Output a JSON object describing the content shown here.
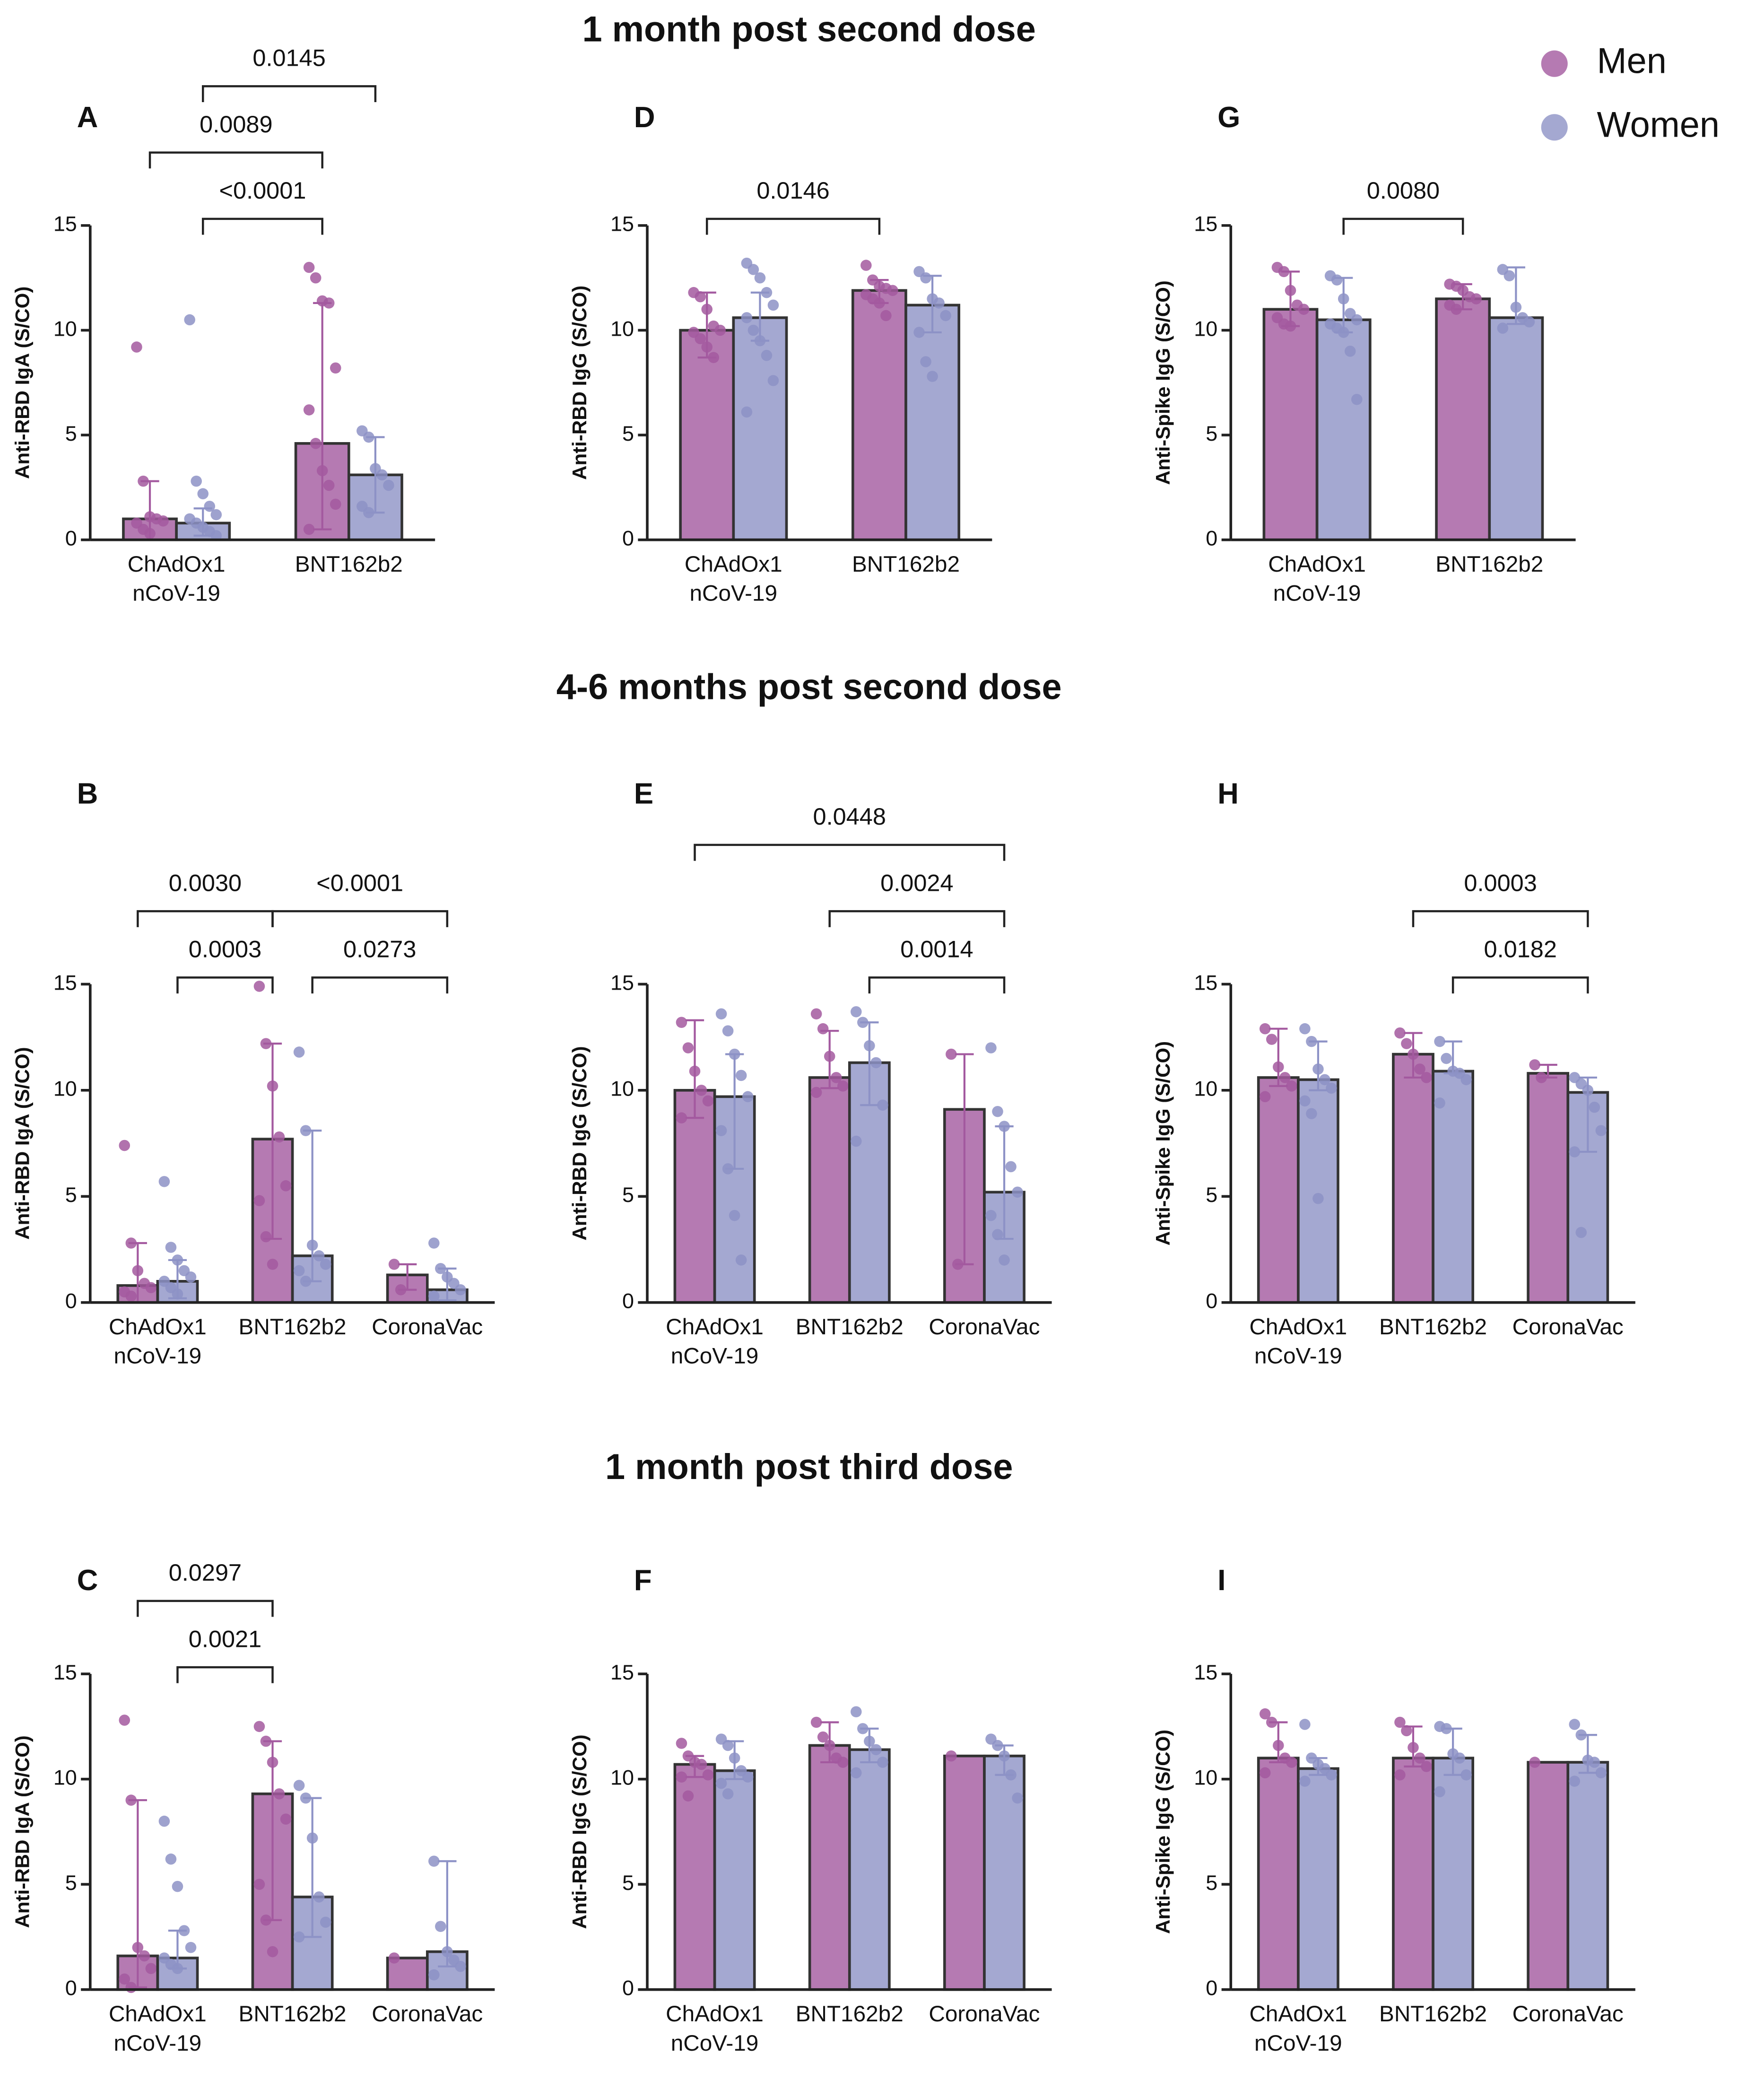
{
  "sections": [
    "1 month post second dose",
    "4-6 months post second dose",
    "1 month post third dose"
  ],
  "chart_data": [
    {
      "type": "bar",
      "panel": "A",
      "ylabel": "Anti-RBD IgA (S/CO)",
      "categories": [
        "ChAdOx1\nnCoV-19",
        "BNT162b2"
      ],
      "ylim": [
        0,
        15
      ],
      "yticks": [
        0,
        5,
        10,
        15
      ],
      "series": [
        {
          "name": "Men",
          "color": "#a3599f",
          "values": [
            1.0,
            4.6
          ],
          "low": [
            0,
            0.5
          ],
          "high": [
            2.8,
            11.3
          ],
          "points": [
            [
              9.2,
              2.8,
              1.1,
              1.0,
              0.9,
              0.8,
              0.5,
              0.3
            ],
            [
              13.0,
              12.5,
              11.4,
              11.3,
              8.2,
              6.2,
              4.6,
              3.3,
              2.6,
              1.7,
              0.5
            ]
          ]
        },
        {
          "name": "Women",
          "color": "#8d92c6",
          "values": [
            0.8,
            3.1
          ],
          "low": [
            0.2,
            1.3
          ],
          "high": [
            1.5,
            4.9
          ],
          "points": [
            [
              10.5,
              2.8,
              2.2,
              1.6,
              1.2,
              1.0,
              0.8,
              0.6,
              0.4,
              0.2
            ],
            [
              5.2,
              4.9,
              3.4,
              3.1,
              2.6,
              1.6,
              1.3
            ]
          ]
        }
      ],
      "annotations": [
        {
          "text": "<0.0001",
          "from": [
            0,
            1
          ],
          "to": [
            1,
            0
          ]
        },
        {
          "text": "0.0089",
          "from": [
            0,
            0
          ],
          "to": [
            1,
            0
          ]
        },
        {
          "text": "0.0145",
          "from": [
            0,
            1
          ],
          "to": [
            1,
            1
          ]
        }
      ]
    },
    {
      "type": "bar",
      "panel": "D",
      "ylabel": "Anti-RBD IgG (S/CO)",
      "categories": [
        "ChAdOx1\nnCoV-19",
        "BNT162b2"
      ],
      "ylim": [
        0,
        15
      ],
      "yticks": [
        0,
        5,
        10,
        15
      ],
      "series": [
        {
          "name": "Men",
          "color": "#a3599f",
          "values": [
            10.0,
            11.9
          ],
          "low": [
            8.7,
            11.3
          ],
          "high": [
            11.8,
            12.4
          ],
          "points": [
            [
              11.8,
              11.6,
              11.0,
              10.2,
              10.0,
              9.9,
              9.6,
              9.2,
              8.7
            ],
            [
              13.1,
              12.4,
              12.1,
              12.0,
              11.9,
              11.7,
              11.5,
              11.3,
              10.7
            ]
          ]
        },
        {
          "name": "Women",
          "color": "#8d92c6",
          "values": [
            10.6,
            11.2
          ],
          "low": [
            9.5,
            9.9
          ],
          "high": [
            11.8,
            12.6
          ],
          "points": [
            [
              13.2,
              12.9,
              12.5,
              11.8,
              11.2,
              10.6,
              10.0,
              9.5,
              8.8,
              7.6,
              6.1
            ],
            [
              12.8,
              12.5,
              11.5,
              11.3,
              10.7,
              9.9,
              8.5,
              7.8
            ]
          ]
        }
      ],
      "annotations": [
        {
          "text": "0.0146",
          "from": [
            0,
            0
          ],
          "to": [
            1,
            0
          ]
        }
      ]
    },
    {
      "type": "bar",
      "panel": "G",
      "ylabel": "Anti-Spike IgG (S/CO)",
      "categories": [
        "ChAdOx1\nnCoV-19",
        "BNT162b2"
      ],
      "ylim": [
        0,
        15
      ],
      "yticks": [
        0,
        5,
        10,
        15
      ],
      "series": [
        {
          "name": "Men",
          "color": "#a3599f",
          "values": [
            11.0,
            11.5
          ],
          "low": [
            10.2,
            11.0
          ],
          "high": [
            12.8,
            12.2
          ],
          "points": [
            [
              13.0,
              12.8,
              11.9,
              11.2,
              11.0,
              10.6,
              10.3,
              10.2
            ],
            [
              12.2,
              12.1,
              11.9,
              11.6,
              11.5,
              11.2,
              11.0
            ]
          ]
        },
        {
          "name": "Women",
          "color": "#8d92c6",
          "values": [
            10.5,
            10.6
          ],
          "low": [
            9.9,
            10.3
          ],
          "high": [
            12.5,
            13.0
          ],
          "points": [
            [
              12.6,
              12.4,
              11.5,
              10.8,
              10.5,
              10.3,
              10.1,
              9.9,
              9.0,
              6.7
            ],
            [
              12.9,
              12.6,
              11.1,
              10.6,
              10.4,
              10.1
            ]
          ]
        }
      ],
      "annotations": [
        {
          "text": "0.0080",
          "from": [
            0,
            1
          ],
          "to": [
            1,
            0
          ]
        }
      ]
    },
    {
      "type": "bar",
      "panel": "B",
      "ylabel": "Anti-RBD IgA (S/CO)",
      "categories": [
        "ChAdOx1\nnCoV-19",
        "BNT162b2",
        "CoronaVac"
      ],
      "ylim": [
        0,
        15
      ],
      "yticks": [
        0,
        5,
        10,
        15
      ],
      "series": [
        {
          "name": "Men",
          "color": "#a3599f",
          "values": [
            0.8,
            7.7,
            1.3
          ],
          "low": [
            0,
            3.0,
            0.6
          ],
          "high": [
            2.8,
            12.2,
            1.8
          ],
          "points": [
            [
              7.4,
              2.8,
              1.5,
              0.9,
              0.7,
              0.5,
              0.3
            ],
            [
              14.9,
              12.2,
              10.2,
              7.8,
              5.5,
              4.8,
              3.1,
              1.8
            ],
            [
              1.8,
              0.6
            ]
          ]
        },
        {
          "name": "Women",
          "color": "#8d92c6",
          "values": [
            1.0,
            2.2,
            0.6
          ],
          "low": [
            0.2,
            1.0,
            0.1
          ],
          "high": [
            2.0,
            8.1,
            1.6
          ],
          "points": [
            [
              5.7,
              2.6,
              2.0,
              1.5,
              1.2,
              1.0,
              0.7,
              0.4
            ],
            [
              11.8,
              8.1,
              2.7,
              2.2,
              1.8,
              1.5,
              1.0
            ],
            [
              2.8,
              1.6,
              1.2,
              0.9,
              0.6,
              0.3
            ]
          ]
        }
      ],
      "annotations": [
        {
          "text": "0.0003",
          "from": [
            0,
            1
          ],
          "to": [
            1,
            0
          ]
        },
        {
          "text": "0.0273",
          "from": [
            1,
            1
          ],
          "to": [
            2,
            1
          ]
        },
        {
          "text": "0.0030",
          "from": [
            0,
            0
          ],
          "to": [
            1,
            0
          ]
        },
        {
          "text": "<0.0001",
          "from": [
            1,
            0
          ],
          "to": [
            2,
            1
          ]
        }
      ]
    },
    {
      "type": "bar",
      "panel": "E",
      "ylabel": "Anti-RBD IgG (S/CO)",
      "categories": [
        "ChAdOx1\nnCoV-19",
        "BNT162b2",
        "CoronaVac"
      ],
      "ylim": [
        0,
        15
      ],
      "yticks": [
        0,
        5,
        10,
        15
      ],
      "series": [
        {
          "name": "Men",
          "color": "#a3599f",
          "values": [
            10.0,
            10.6,
            9.1
          ],
          "low": [
            8.7,
            10.1,
            1.8
          ],
          "high": [
            13.3,
            12.8,
            11.7
          ],
          "points": [
            [
              13.2,
              12.0,
              10.9,
              10.0,
              9.5,
              8.7
            ],
            [
              13.6,
              12.9,
              11.6,
              10.6,
              10.2,
              9.9
            ],
            [
              11.7,
              1.8
            ]
          ]
        },
        {
          "name": "Women",
          "color": "#8d92c6",
          "values": [
            9.7,
            11.3,
            5.2
          ],
          "low": [
            6.3,
            9.3,
            3.0
          ],
          "high": [
            11.7,
            13.2,
            8.3
          ],
          "points": [
            [
              13.6,
              12.8,
              11.7,
              10.7,
              9.7,
              8.1,
              6.3,
              4.1,
              2.0
            ],
            [
              13.7,
              13.2,
              12.1,
              11.3,
              9.3,
              7.6
            ],
            [
              12.0,
              9.0,
              8.3,
              6.4,
              5.2,
              4.1,
              3.2,
              2.0
            ]
          ]
        }
      ],
      "annotations": [
        {
          "text": "0.0014",
          "from": [
            1,
            1
          ],
          "to": [
            2,
            1
          ]
        },
        {
          "text": "0.0024",
          "from": [
            1,
            0
          ],
          "to": [
            2,
            1
          ]
        },
        {
          "text": "0.0448",
          "from": [
            0,
            0
          ],
          "to": [
            2,
            1
          ]
        }
      ]
    },
    {
      "type": "bar",
      "panel": "H",
      "ylabel": "Anti-Spike IgG (S/CO)",
      "categories": [
        "ChAdOx1\nnCoV-19",
        "BNT162b2",
        "CoronaVac"
      ],
      "ylim": [
        0,
        15
      ],
      "yticks": [
        0,
        5,
        10,
        15
      ],
      "series": [
        {
          "name": "Men",
          "color": "#a3599f",
          "values": [
            10.6,
            11.7,
            10.8
          ],
          "low": [
            10.2,
            10.6,
            10.6
          ],
          "high": [
            12.9,
            12.7,
            11.2
          ],
          "points": [
            [
              12.9,
              12.4,
              11.1,
              10.6,
              10.2,
              9.7
            ],
            [
              12.7,
              12.2,
              11.7,
              11.0,
              10.6
            ],
            [
              11.2,
              10.6
            ]
          ]
        },
        {
          "name": "Women",
          "color": "#8d92c6",
          "values": [
            10.5,
            10.9,
            9.9
          ],
          "low": [
            10.0,
            10.8,
            7.1
          ],
          "high": [
            12.3,
            12.3,
            10.6
          ],
          "points": [
            [
              12.9,
              12.3,
              11.0,
              10.5,
              10.1,
              9.5,
              8.9,
              4.9
            ],
            [
              12.3,
              11.5,
              10.9,
              10.8,
              10.5,
              9.4
            ],
            [
              10.6,
              10.3,
              10.0,
              9.2,
              8.1,
              7.1,
              3.3
            ]
          ]
        }
      ],
      "annotations": [
        {
          "text": "0.0182",
          "from": [
            1,
            1
          ],
          "to": [
            2,
            1
          ]
        },
        {
          "text": "0.0003",
          "from": [
            1,
            0
          ],
          "to": [
            2,
            1
          ]
        }
      ]
    },
    {
      "type": "bar",
      "panel": "C",
      "ylabel": "Anti-RBD IgA (S/CO)",
      "categories": [
        "ChAdOx1\nnCoV-19",
        "BNT162b2",
        "CoronaVac"
      ],
      "ylim": [
        0,
        15
      ],
      "yticks": [
        0,
        5,
        10,
        15
      ],
      "series": [
        {
          "name": "Men",
          "color": "#a3599f",
          "values": [
            1.6,
            9.3,
            1.5
          ],
          "low": [
            0.1,
            3.3,
            null
          ],
          "high": [
            9.0,
            11.8,
            null
          ],
          "points": [
            [
              12.8,
              9.0,
              2.0,
              1.6,
              1.0,
              0.5,
              0.1
            ],
            [
              12.5,
              11.8,
              10.8,
              9.3,
              8.1,
              5.0,
              3.3,
              1.8
            ],
            [
              1.5
            ]
          ]
        },
        {
          "name": "Women",
          "color": "#8d92c6",
          "values": [
            1.5,
            4.4,
            1.8
          ],
          "low": [
            1.0,
            2.5,
            1.1
          ],
          "high": [
            2.8,
            9.1,
            6.1
          ],
          "points": [
            [
              8.0,
              6.2,
              4.9,
              2.8,
              2.0,
              1.5,
              1.2,
              1.0
            ],
            [
              9.7,
              9.1,
              7.2,
              4.4,
              3.2,
              2.5
            ],
            [
              6.1,
              3.0,
              1.8,
              1.4,
              1.1,
              0.7
            ]
          ]
        }
      ],
      "annotations": [
        {
          "text": "0.0021",
          "from": [
            0,
            1
          ],
          "to": [
            1,
            0
          ]
        },
        {
          "text": "0.0297",
          "from": [
            0,
            0
          ],
          "to": [
            1,
            0
          ]
        }
      ]
    },
    {
      "type": "bar",
      "panel": "F",
      "ylabel": "Anti-RBD IgG (S/CO)",
      "categories": [
        "ChAdOx1\nnCoV-19",
        "BNT162b2",
        "CoronaVac"
      ],
      "ylim": [
        0,
        15
      ],
      "yticks": [
        0,
        5,
        10,
        15
      ],
      "series": [
        {
          "name": "Men",
          "color": "#a3599f",
          "values": [
            10.7,
            11.6,
            11.1
          ],
          "low": [
            10.1,
            10.8,
            null
          ],
          "high": [
            11.1,
            12.7,
            null
          ],
          "points": [
            [
              11.7,
              11.1,
              10.8,
              10.7,
              10.2,
              10.1,
              9.2
            ],
            [
              12.7,
              12.0,
              11.6,
              11.0,
              10.8
            ],
            [
              11.1
            ]
          ]
        },
        {
          "name": "Women",
          "color": "#8d92c6",
          "values": [
            10.4,
            11.4,
            11.1
          ],
          "low": [
            10.0,
            10.8,
            10.2
          ],
          "high": [
            11.8,
            12.4,
            11.6
          ],
          "points": [
            [
              11.9,
              11.6,
              11.0,
              10.4,
              10.1,
              9.8,
              9.3
            ],
            [
              13.2,
              12.4,
              11.8,
              11.4,
              10.8,
              10.3
            ],
            [
              11.9,
              11.6,
              11.1,
              10.2,
              9.1
            ]
          ]
        }
      ]
    },
    {
      "type": "bar",
      "panel": "I",
      "ylabel": "Anti-Spike IgG (S/CO)",
      "categories": [
        "ChAdOx1\nnCoV-19",
        "BNT162b2",
        "CoronaVac"
      ],
      "ylim": [
        0,
        15
      ],
      "yticks": [
        0,
        5,
        10,
        15
      ],
      "series": [
        {
          "name": "Men",
          "color": "#a3599f",
          "values": [
            11.0,
            11.0,
            10.8
          ],
          "low": [
            10.8,
            10.6,
            null
          ],
          "high": [
            12.7,
            12.5,
            null
          ],
          "points": [
            [
              13.1,
              12.7,
              11.6,
              11.0,
              10.8,
              10.3
            ],
            [
              12.7,
              12.3,
              11.5,
              11.0,
              10.6,
              10.2
            ],
            [
              10.8
            ]
          ]
        },
        {
          "name": "Women",
          "color": "#8d92c6",
          "values": [
            10.5,
            11.0,
            10.8
          ],
          "low": [
            10.2,
            10.2,
            10.3
          ],
          "high": [
            11.0,
            12.4,
            12.1
          ],
          "points": [
            [
              12.6,
              11.0,
              10.7,
              10.5,
              10.2,
              9.9
            ],
            [
              12.5,
              12.4,
              11.2,
              11.0,
              10.2,
              9.4
            ],
            [
              12.6,
              12.1,
              10.9,
              10.8,
              10.3,
              9.9
            ]
          ]
        }
      ]
    }
  ]
}
